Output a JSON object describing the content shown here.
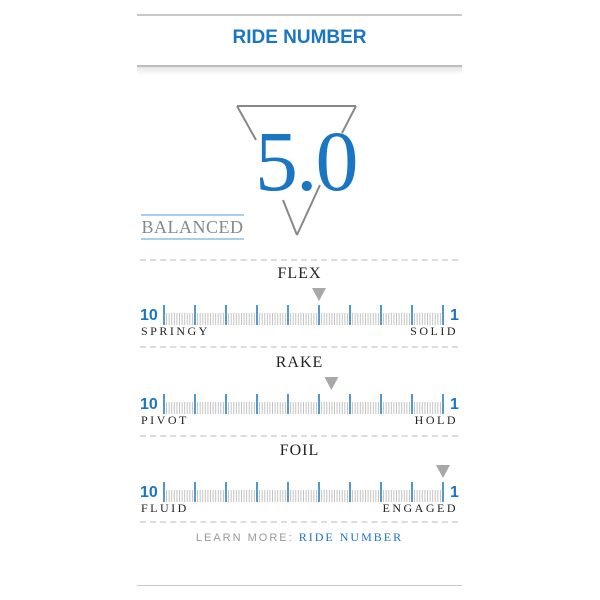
{
  "header": {
    "title": "RIDE NUMBER"
  },
  "ride_number": {
    "value": "5.0",
    "label": "BALANCED"
  },
  "scales": [
    {
      "title": "FLEX",
      "left_num": "10",
      "right_num": "1",
      "left_label": "SPRINGY",
      "right_label": "SOLID",
      "value": 5
    },
    {
      "title": "RAKE",
      "left_num": "10",
      "right_num": "1",
      "left_label": "PIVOT",
      "right_label": "HOLD",
      "value": 4.6
    },
    {
      "title": "FOIL",
      "left_num": "10",
      "right_num": "1",
      "left_label": "FLUID",
      "right_label": "ENGAGED",
      "value": 1
    }
  ],
  "footer": {
    "learn_prefix": "LEARN MORE:",
    "learn_link": "RIDE NUMBER"
  },
  "colors": {
    "accent": "#1a75c4",
    "marker": "#a8a8a8",
    "ticks": "#c4c4c4"
  }
}
